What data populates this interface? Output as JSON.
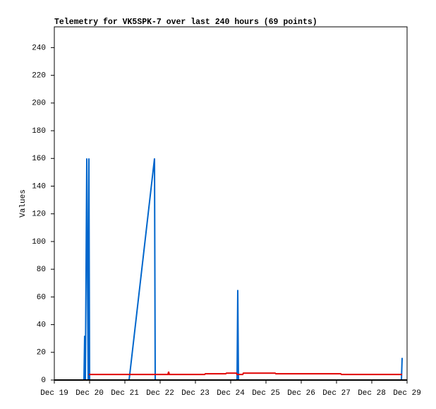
{
  "chart_data": {
    "type": "line",
    "title": "Telemetry for VK5SPK-7 over last 240 hours (69 points)",
    "y_label": "Values",
    "xlim": [
      19,
      29
    ],
    "xticks": [
      {
        "value": 19,
        "label": "Dec 19"
      },
      {
        "value": 20,
        "label": "Dec 20"
      },
      {
        "value": 21,
        "label": "Dec 21"
      },
      {
        "value": 22,
        "label": "Dec 22"
      },
      {
        "value": 23,
        "label": "Dec 23"
      },
      {
        "value": 24,
        "label": "Dec 24"
      },
      {
        "value": 25,
        "label": "Dec 25"
      },
      {
        "value": 26,
        "label": "Dec 26"
      },
      {
        "value": 27,
        "label": "Dec 27"
      },
      {
        "value": 28,
        "label": "Dec 28"
      },
      {
        "value": 29,
        "label": "Dec 29"
      }
    ],
    "ylim": [
      0,
      255
    ],
    "yticks": [
      0,
      20,
      40,
      60,
      80,
      100,
      120,
      140,
      160,
      180,
      200,
      220,
      240
    ],
    "grid": false,
    "series": [
      {
        "color": "#0066cc",
        "x": [
          19.84,
          19.86,
          19.88,
          19.92,
          19.94,
          19.96,
          19.98,
          20.0,
          21.12,
          21.84,
          21.86,
          24.18,
          24.2,
          24.22,
          28.84,
          28.86
        ],
        "values": [
          0,
          32,
          0,
          160,
          80,
          0,
          160,
          0,
          0,
          160,
          0,
          0,
          65,
          0,
          0,
          16
        ]
      },
      {
        "color": "#e00000",
        "x": [
          19.98,
          22.22,
          22.24,
          22.26,
          23.26,
          23.28,
          23.86,
          23.88,
          24.16,
          24.18,
          24.34,
          24.36,
          25.26,
          25.28,
          27.12,
          27.14,
          28.86
        ],
        "values": [
          4,
          4,
          6,
          4,
          4,
          4.5,
          4.5,
          5,
          5,
          4,
          4,
          5,
          5,
          4.5,
          4.5,
          4,
          4
        ]
      }
    ]
  }
}
